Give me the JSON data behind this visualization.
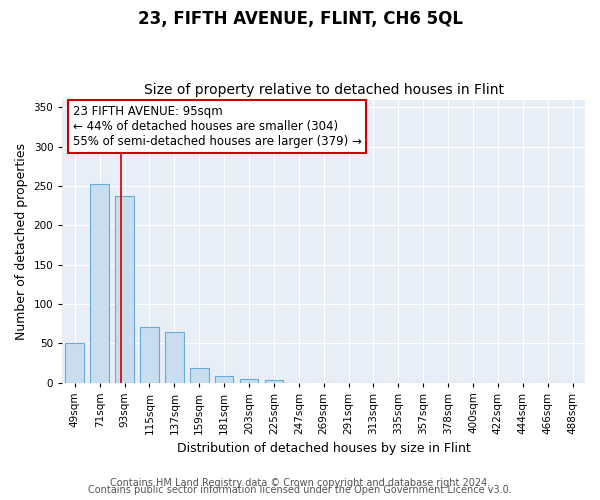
{
  "title": "23, FIFTH AVENUE, FLINT, CH6 5QL",
  "subtitle": "Size of property relative to detached houses in Flint",
  "xlabel": "Distribution of detached houses by size in Flint",
  "ylabel": "Number of detached properties",
  "bar_labels": [
    "49sqm",
    "71sqm",
    "93sqm",
    "115sqm",
    "137sqm",
    "159sqm",
    "181sqm",
    "203sqm",
    "225sqm",
    "247sqm",
    "269sqm",
    "291sqm",
    "313sqm",
    "335sqm",
    "357sqm",
    "378sqm",
    "400sqm",
    "422sqm",
    "444sqm",
    "466sqm",
    "488sqm"
  ],
  "bar_values": [
    50,
    253,
    237,
    70,
    64,
    18,
    8,
    5,
    3,
    0,
    0,
    0,
    0,
    0,
    0,
    0,
    0,
    0,
    0,
    0,
    0
  ],
  "bar_color": "#c8ddf0",
  "bar_edge_color": "#6aaad4",
  "vline_color": "#cc0000",
  "vline_index": 2,
  "ylim": [
    0,
    360
  ],
  "yticks": [
    0,
    50,
    100,
    150,
    200,
    250,
    300,
    350
  ],
  "annotation_title": "23 FIFTH AVENUE: 95sqm",
  "annotation_line1": "← 44% of detached houses are smaller (304)",
  "annotation_line2": "55% of semi-detached houses are larger (379) →",
  "annotation_box_color": "#ffffff",
  "annotation_box_edge": "#cc0000",
  "footer_line1": "Contains HM Land Registry data © Crown copyright and database right 2024.",
  "footer_line2": "Contains public sector information licensed under the Open Government Licence v3.0.",
  "plot_bg_color": "#e8eef8",
  "fig_bg_color": "#ffffff",
  "grid_color": "#ffffff",
  "title_fontsize": 12,
  "subtitle_fontsize": 10,
  "axis_label_fontsize": 9,
  "tick_fontsize": 7.5,
  "footer_fontsize": 7,
  "annotation_fontsize": 8.5,
  "bar_width": 0.75
}
